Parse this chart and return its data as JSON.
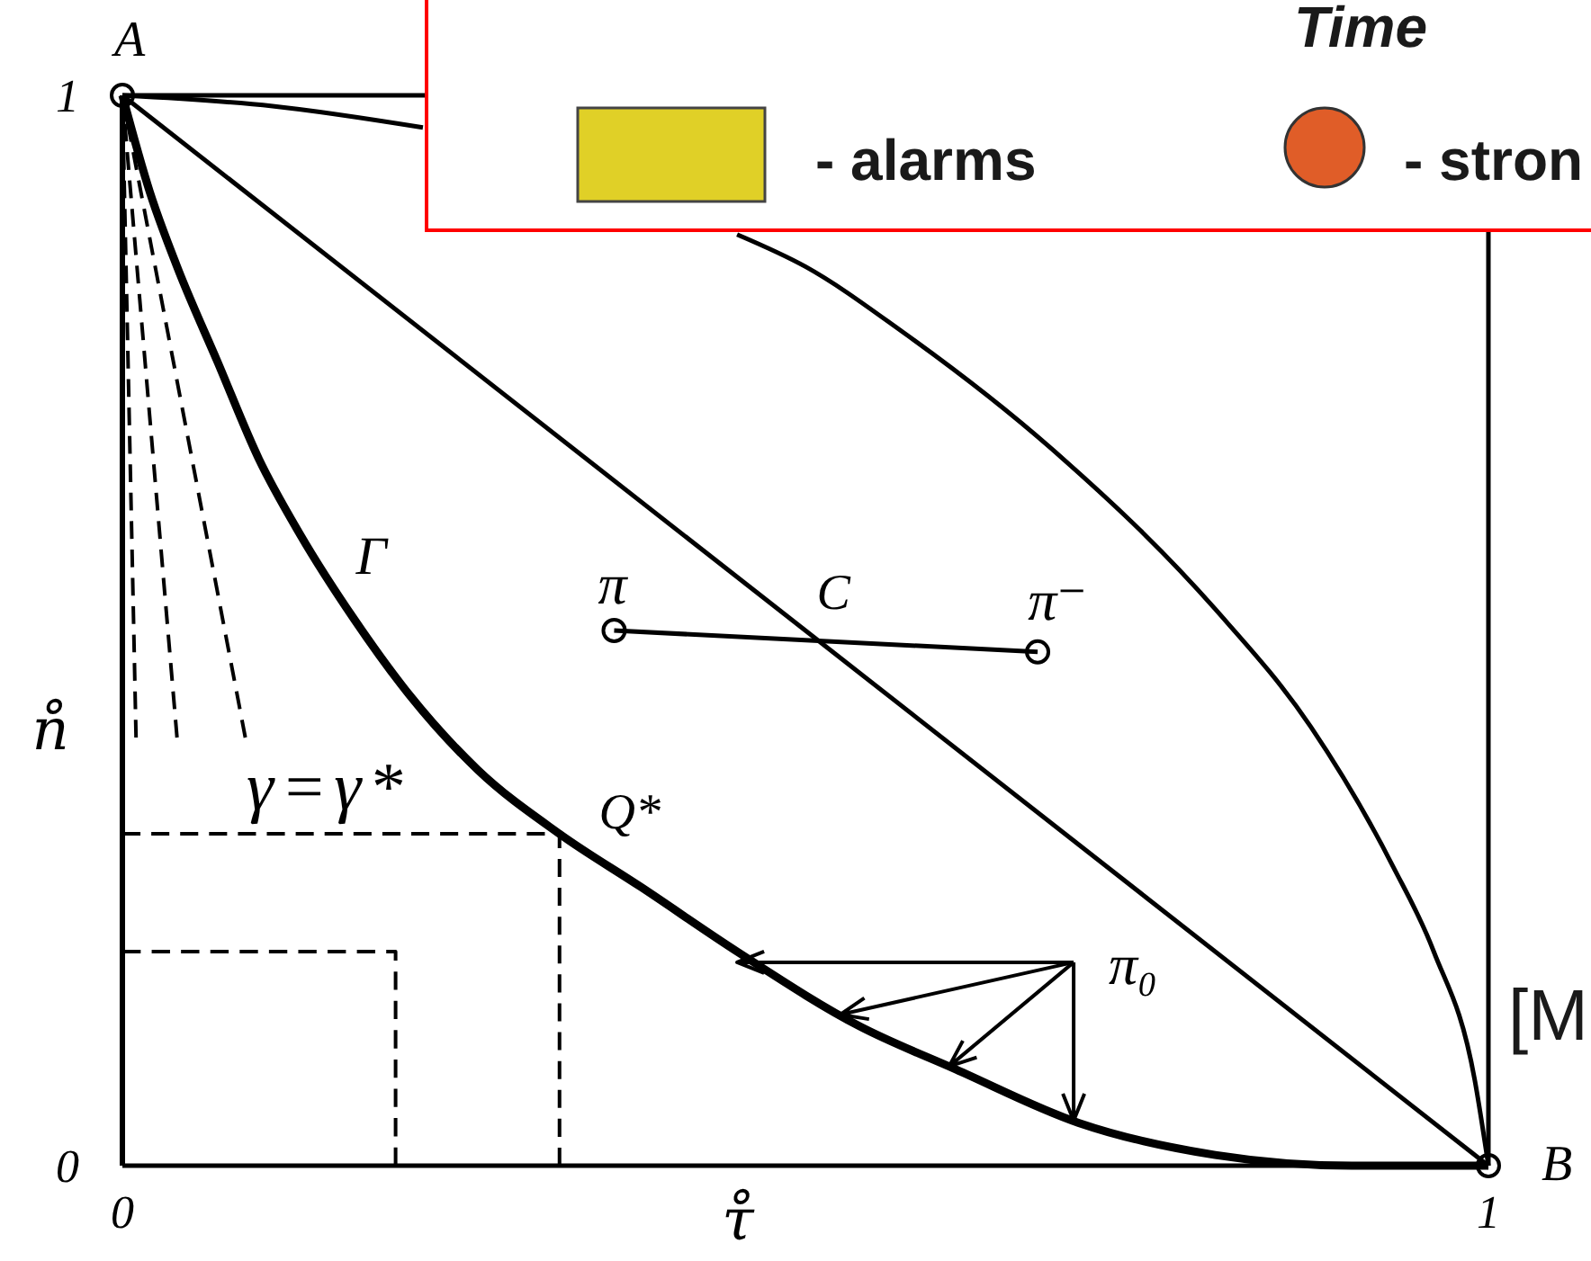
{
  "chart_data": {
    "type": "line",
    "xlabel": "τ̊",
    "ylabel": "n̊",
    "xlim": [
      0,
      1
    ],
    "ylim": [
      0,
      1
    ],
    "xticks": [
      0,
      1
    ],
    "yticks": [
      0,
      1
    ],
    "series": [
      {
        "color": "#000000",
        "x": [
          0,
          0.02,
          0.04,
          0.07,
          0.1,
          0.13,
          0.17,
          0.21,
          0.26,
          0.32,
          0.38,
          0.45,
          0.54,
          0.61,
          0.7,
          0.8,
          0.9,
          1
        ],
        "values": [
          1,
          0.91,
          0.84,
          0.75,
          0.66,
          0.59,
          0.51,
          0.44,
          0.37,
          0.31,
          0.26,
          0.2,
          0.13,
          0.09,
          0.04,
          0.01,
          0,
          0
        ]
      },
      {
        "color": "#000000",
        "x": [
          0,
          1
        ],
        "values": [
          1,
          0
        ]
      },
      {
        "color": "#000000",
        "x": [
          0,
          0.11,
          0.22,
          0.33,
          0.45,
          0.5,
          0.57,
          0.68,
          0.8,
          0.87,
          0.93,
          0.96,
          0.99,
          1
        ],
        "values": [
          1,
          0.99,
          0.97,
          null,
          0.87,
          0.84,
          0.78,
          0.67,
          0.52,
          0.41,
          0.28,
          0.2,
          0.08,
          0
        ]
      },
      {
        "color": "#000000",
        "x": [
          0,
          0.01
        ],
        "values": [
          1,
          0.4
        ],
        "line_style": "dashed"
      },
      {
        "color": "#000000",
        "x": [
          0,
          0.04
        ],
        "values": [
          1,
          0.4
        ],
        "line_style": "dashed"
      },
      {
        "color": "#000000",
        "x": [
          0,
          0.09
        ],
        "values": [
          1,
          0.4
        ],
        "line_style": "dashed"
      },
      {
        "color": "#000000",
        "x": [
          0,
          0.32,
          0.32
        ],
        "values": [
          0.31,
          0.31,
          0
        ],
        "line_style": "dashed"
      },
      {
        "color": "#000000",
        "x": [
          0,
          0.2,
          0.2
        ],
        "values": [
          0.2,
          0.2,
          0
        ],
        "line_style": "dashed"
      },
      {
        "color": "#000000",
        "x": [
          0.36,
          0.67
        ],
        "values": [
          0.5,
          0.48
        ],
        "marker": "circle"
      },
      {
        "type": "scatter",
        "color": "#000000",
        "x": [
          0,
          1
        ],
        "values": [
          1,
          0
        ],
        "marker": "circle"
      }
    ],
    "annotations": [
      {
        "text": "A",
        "x": 0,
        "y": 1
      },
      {
        "text": "B",
        "x": 1,
        "y": 0
      },
      {
        "text": "Γ",
        "x": 0.14,
        "y": 0.55
      },
      {
        "text": "π",
        "x": 0.36,
        "y": 0.5
      },
      {
        "text": "C",
        "x": 0.51,
        "y": 0.49
      },
      {
        "text": "π⁻",
        "x": 0.67,
        "y": 0.48
      },
      {
        "text": "π₀",
        "x": 0.45,
        "y": 0.19
      },
      {
        "text": "Q*",
        "x": 0.32,
        "y": 0.31
      },
      {
        "text": "γ=γ*",
        "x": 0.09,
        "y": 0.4
      },
      "Time",
      "- alarms",
      "- stron",
      "[M"
    ]
  }
}
